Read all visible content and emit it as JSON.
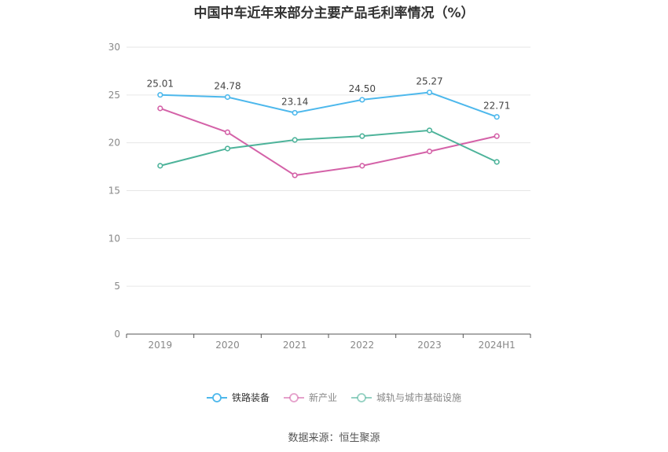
{
  "chart_data": {
    "type": "line",
    "title": "中国中车近年来部分主要产品毛利率情况（%）",
    "categories": [
      "2019",
      "2020",
      "2021",
      "2022",
      "2023",
      "2024H1"
    ],
    "ylim": [
      0,
      30
    ],
    "yticks": [
      0,
      5,
      10,
      15,
      20,
      25,
      30
    ],
    "grid": true,
    "legend_position": "bottom",
    "series": [
      {
        "name": "铁路装备",
        "color": "#4db8ec",
        "values": [
          25.01,
          24.78,
          23.14,
          24.5,
          25.27,
          22.71
        ],
        "labels": [
          "25.01",
          "24.78",
          "23.14",
          "24.50",
          "25.27",
          "22.71"
        ]
      },
      {
        "name": "新产业",
        "color": "#d462a8",
        "values": [
          23.6,
          21.1,
          16.6,
          17.6,
          19.1,
          20.7
        ]
      },
      {
        "name": "城轨与城市基础设施",
        "color": "#4db39a",
        "values": [
          17.6,
          19.4,
          20.3,
          20.7,
          21.3,
          18.0
        ]
      }
    ]
  },
  "source": "数据来源：恒生聚源"
}
